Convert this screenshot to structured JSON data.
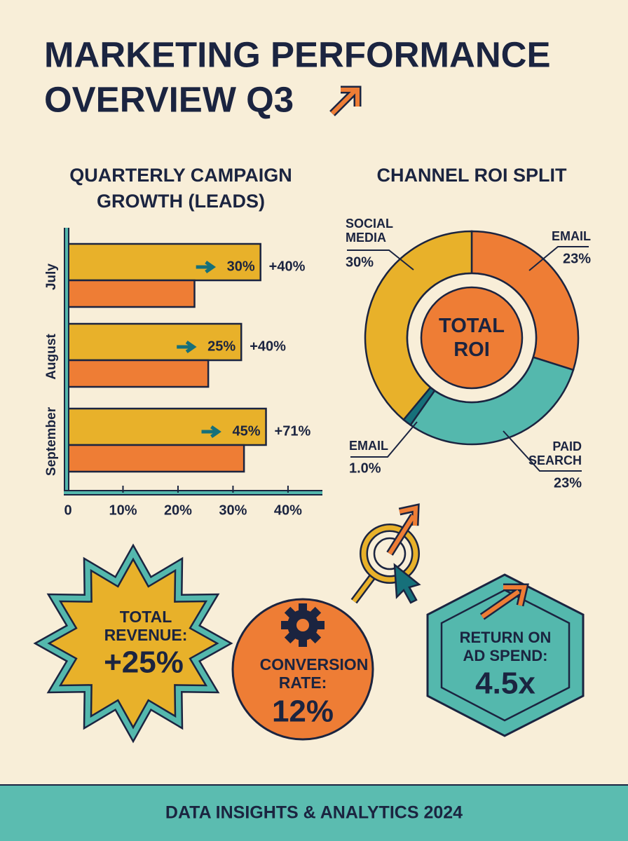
{
  "title": [
    "MARKETING PERFORMANCE",
    "OVERVIEW Q3"
  ],
  "chart_data": [
    {
      "type": "bar",
      "orientation": "horizontal",
      "title": [
        "QUARTERLY CAMPAIGN",
        "GROWTH (LEADS)"
      ],
      "categories": [
        "July",
        "August",
        "September"
      ],
      "series": [
        {
          "color": "#e8b12a",
          "values": [
            35,
            31.5,
            36
          ]
        },
        {
          "color": "#ee7d35",
          "values": [
            23,
            25.5,
            32
          ]
        }
      ],
      "annotations": [
        {
          "label": "30%",
          "change": "+40%"
        },
        {
          "label": "25%",
          "change": "+40%"
        },
        {
          "label": "45%",
          "change": "+71%"
        }
      ],
      "xlim": [
        0,
        46
      ],
      "xticks": [
        0,
        {
          "value": 10,
          "label": "10%"
        },
        {
          "value": 20,
          "label": "20%"
        },
        {
          "value": 30,
          "label": "30%"
        },
        {
          "value": 40,
          "label": "40%"
        }
      ]
    },
    {
      "type": "pie",
      "title": "CHANNEL ROI SPLIT",
      "center_label": "TOTAL ROI",
      "categories": [
        "EMAIL",
        "PAID SEARCH",
        "EMAIL",
        "SOCIAL MEDIA"
      ],
      "values": [
        23,
        23,
        1.0,
        30
      ],
      "value_labels": [
        "23%",
        "23%",
        "1.0%",
        "30%"
      ],
      "colors": [
        "#ee7d35",
        "#54b8ad",
        "#16707a",
        "#e8b12a"
      ]
    }
  ],
  "kpis": [
    {
      "label": [
        "TOTAL",
        "REVENUE:"
      ],
      "value": "+25%"
    },
    {
      "label": [
        "CONVERSION",
        "RATE:"
      ],
      "value": "12%"
    },
    {
      "label": [
        "RETURN ON",
        "AD SPEND:"
      ],
      "value": "4.5x"
    }
  ],
  "footer": "DATA INSIGHTS & ANALYTICS 2024"
}
